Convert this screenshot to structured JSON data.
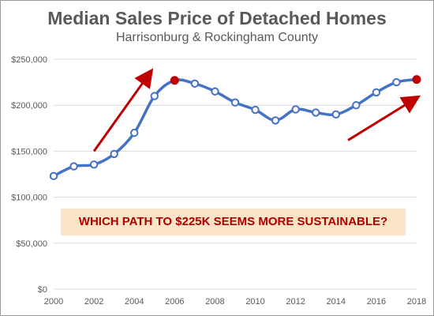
{
  "chart_data": {
    "type": "line",
    "title": "Median Sales Price of Detached Homes",
    "subtitle": "Harrisonburg & Rockingham County",
    "x": [
      2000,
      2001,
      2002,
      2003,
      2004,
      2005,
      2006,
      2007,
      2008,
      2009,
      2010,
      2011,
      2012,
      2013,
      2014,
      2015,
      2016,
      2017,
      2018
    ],
    "series": [
      {
        "values": [
          123000,
          133500,
          135500,
          147000,
          170000,
          210000,
          227000,
          223500,
          215000,
          203000,
          195000,
          183500,
          195500,
          192000,
          190000,
          200000,
          214000,
          225000,
          228000
        ],
        "color": "#4472c4",
        "highlighted_points": [
          2006,
          2018
        ],
        "highlight_color": "#c00000"
      }
    ],
    "xlim": [
      2000,
      2018
    ],
    "ylim": [
      0,
      250000
    ],
    "x_ticks": [
      "2000",
      "2002",
      "2004",
      "2006",
      "2008",
      "2010",
      "2012",
      "2014",
      "2016",
      "2018"
    ],
    "y_ticks": [
      "$0",
      "$50,000",
      "$100,000",
      "$150,000",
      "$200,000",
      "$250,000"
    ],
    "grid": "horizontal",
    "annotations": {
      "callout": "WHICH PATH TO $225K SEEMS MORE SUSTAINABLE?",
      "callout_color": "#c00000",
      "callout_background": "#fbe5c6",
      "arrows": [
        {
          "from": [
            2002,
            150000
          ],
          "to": [
            2004.8,
            236000
          ],
          "color": "#c00000"
        },
        {
          "from": [
            2014.6,
            162000
          ],
          "to": [
            2018,
            208000
          ],
          "color": "#c00000"
        }
      ]
    }
  }
}
